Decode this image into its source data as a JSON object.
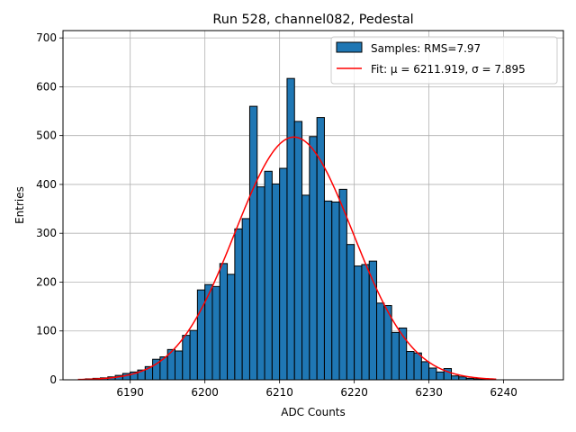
{
  "chart_data": {
    "type": "bar",
    "title": "Run 528, channel082, Pedestal",
    "xlabel": "ADC Counts",
    "ylabel": "Entries",
    "xlim": [
      6181,
      6248
    ],
    "ylim": [
      0,
      715
    ],
    "xticks": [
      6190,
      6200,
      6210,
      6220,
      6230,
      6240
    ],
    "yticks": [
      0,
      100,
      200,
      300,
      400,
      500,
      600,
      700
    ],
    "grid": true,
    "legend_position": "upper-right",
    "series": [
      {
        "name": "Samples: RMS=7.97",
        "kind": "histogram",
        "bin_width": 1,
        "x": [
          6184,
          6185,
          6186,
          6187,
          6188,
          6189,
          6190,
          6191,
          6192,
          6193,
          6194,
          6195,
          6196,
          6197,
          6198,
          6199,
          6200,
          6201,
          6202,
          6203,
          6204,
          6205,
          6206,
          6207,
          6208,
          6209,
          6210,
          6211,
          6212,
          6213,
          6214,
          6215,
          6216,
          6217,
          6218,
          6219,
          6220,
          6221,
          6222,
          6223,
          6224,
          6225,
          6226,
          6227,
          6228,
          6229,
          6230,
          6231,
          6232,
          6233,
          6234,
          6235,
          6236,
          6237
        ],
        "values": [
          2,
          3,
          4,
          6,
          9,
          13,
          16,
          20,
          27,
          42,
          47,
          62,
          59,
          91,
          101,
          184,
          195,
          191,
          238,
          216,
          309,
          330,
          560,
          395,
          427,
          401,
          433,
          617,
          529,
          378,
          498,
          537,
          366,
          364,
          390,
          277,
          233,
          236,
          243,
          157,
          152,
          97,
          106,
          58,
          55,
          37,
          24,
          16,
          23,
          8,
          6,
          3,
          2,
          1
        ],
        "color": "#1f77b4",
        "edgecolor": "#000000"
      },
      {
        "name": "Fit: μ = 6211.919, σ = 7.895",
        "kind": "line",
        "mu": 6211.919,
        "sigma": 7.895,
        "amplitude": 497,
        "x_range": [
          6183,
          6239
        ],
        "color": "#ff0000"
      }
    ]
  }
}
